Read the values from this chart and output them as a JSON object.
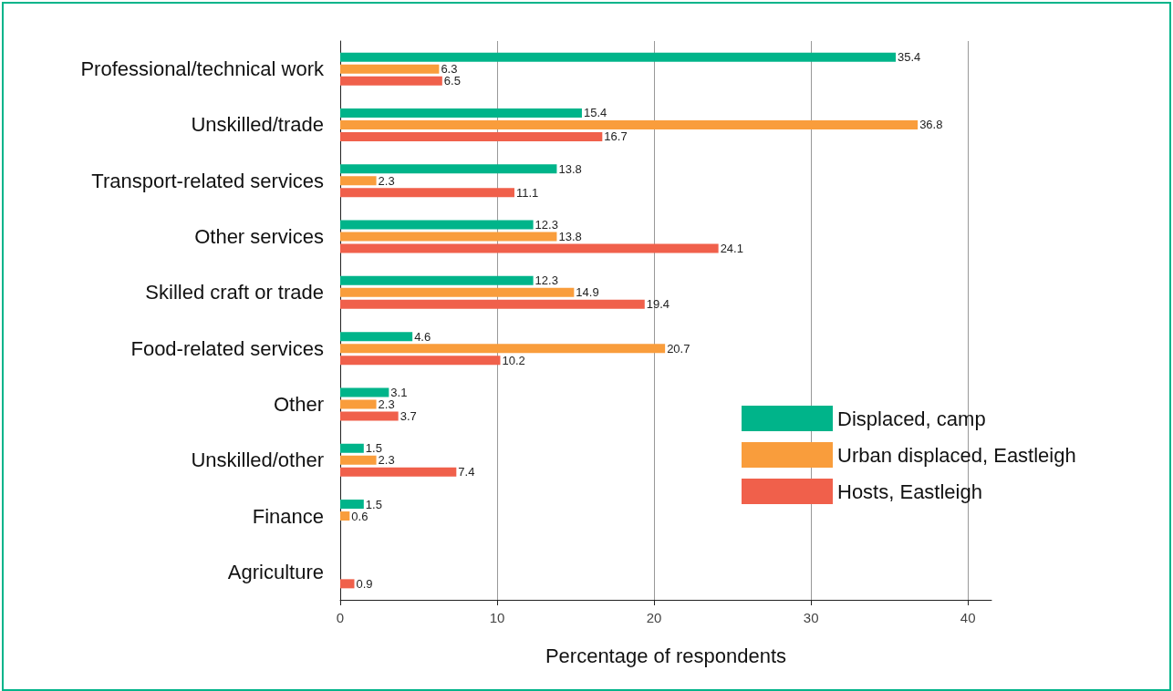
{
  "chart_data": {
    "type": "bar",
    "orientation": "horizontal",
    "xlabel": "Percentage of respondents",
    "categories": [
      "Professional/technical work",
      "Unskilled/trade",
      "Transport-related services",
      "Other services",
      "Skilled craft or trade",
      "Food-related services",
      "Other",
      "Unskilled/other",
      "Finance",
      "Agriculture"
    ],
    "series": [
      {
        "name": "Displaced, camp",
        "color": "#00b48a",
        "values": [
          35.4,
          15.4,
          13.8,
          12.3,
          12.3,
          4.6,
          3.1,
          1.5,
          1.5,
          null
        ]
      },
      {
        "name": "Urban displaced, Eastleigh",
        "color": "#f99d3c",
        "values": [
          6.3,
          36.8,
          2.3,
          13.8,
          14.9,
          20.7,
          2.3,
          2.3,
          0.6,
          null
        ]
      },
      {
        "name": "Hosts, Eastleigh",
        "color": "#f0604b",
        "values": [
          6.5,
          16.7,
          11.1,
          24.1,
          19.4,
          10.2,
          3.7,
          7.4,
          null,
          0.9
        ]
      }
    ],
    "xlim": [
      0,
      41.5
    ],
    "xticks": [
      0,
      10,
      20,
      30,
      40
    ],
    "grid": "x",
    "legend": "right",
    "data_labels": true
  }
}
